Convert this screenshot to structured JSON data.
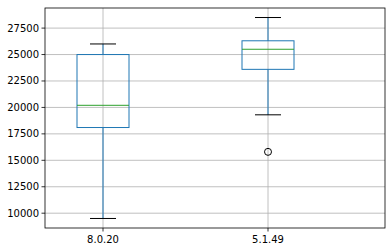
{
  "chart_data": {
    "type": "box",
    "categories": [
      "8.0.20",
      "5.1.49"
    ],
    "boxes": [
      {
        "whisker_low": 9500,
        "q1": 18100,
        "median": 20200,
        "q3": 25000,
        "whisker_high": 26000,
        "outliers": []
      },
      {
        "whisker_low": 19300,
        "q1": 23600,
        "median": 25500,
        "q3": 26300,
        "whisker_high": 28500,
        "outliers": [
          15800
        ]
      }
    ],
    "color": "#1f77b4",
    "ylim": [
      8600,
      29400
    ],
    "yticks": [
      10000,
      12500,
      15000,
      17500,
      20000,
      22500,
      25000,
      27500
    ],
    "grid": true
  }
}
